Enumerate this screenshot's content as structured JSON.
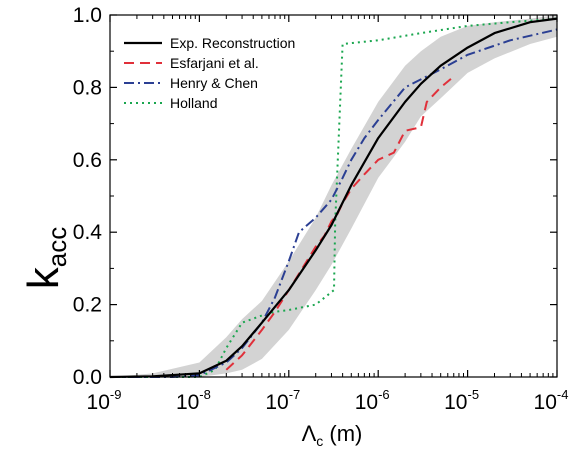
{
  "chart_data": {
    "type": "line",
    "xlabel": "Λc (m)",
    "xlabel_symbol": "Λ",
    "xlabel_sub": "c",
    "xlabel_unit": " (m)",
    "ylabel": "kacc",
    "ylabel_main": "k",
    "ylabel_sub": "acc",
    "xscale": "log",
    "xlim": [
      1e-09,
      0.0001
    ],
    "ylim": [
      0,
      1
    ],
    "x_tick_exponents": [
      "-9",
      "-8",
      "-7",
      "-6",
      "-5",
      "-4"
    ],
    "y_ticks": [
      "0.0",
      "0.2",
      "0.4",
      "0.6",
      "0.8",
      "1.0"
    ],
    "legend_position": "top-left",
    "band": {
      "x": [
        1e-09,
        3e-09,
        1e-08,
        2e-08,
        3e-08,
        5e-08,
        1e-07,
        2e-07,
        3e-07,
        5e-07,
        1e-06,
        2e-06,
        3e-06,
        5e-06,
        1e-05,
        2e-05,
        5e-05,
        0.0001
      ],
      "lower": [
        0,
        0,
        0,
        0.01,
        0.02,
        0.05,
        0.13,
        0.24,
        0.31,
        0.41,
        0.55,
        0.65,
        0.72,
        0.77,
        0.84,
        0.88,
        0.92,
        0.94
      ],
      "upper": [
        0,
        0.01,
        0.04,
        0.11,
        0.16,
        0.21,
        0.32,
        0.44,
        0.53,
        0.63,
        0.76,
        0.86,
        0.9,
        0.94,
        0.97,
        0.98,
        0.99,
        1.0
      ]
    },
    "series": [
      {
        "name": "Exp. Reconstruction",
        "color": "#000000",
        "dash": "solid",
        "x": [
          1e-09,
          3e-09,
          1e-08,
          2e-08,
          3e-08,
          5e-08,
          1e-07,
          2e-07,
          3e-07,
          5e-07,
          1e-06,
          2e-06,
          3e-06,
          5e-06,
          1e-05,
          2e-05,
          5e-05,
          0.0001
        ],
        "y": [
          0,
          0.002,
          0.01,
          0.045,
          0.085,
          0.15,
          0.24,
          0.35,
          0.42,
          0.53,
          0.66,
          0.76,
          0.81,
          0.86,
          0.91,
          0.95,
          0.98,
          0.99
        ]
      },
      {
        "name": "Esfarjani et al.",
        "color": "#e0303a",
        "dash": "dashed",
        "x": [
          2e-08,
          3e-08,
          5e-08,
          7e-08,
          1e-07,
          1.5e-07,
          2e-07,
          2.5e-07,
          3e-07,
          3.5e-07,
          4e-07,
          5e-07,
          7e-07,
          1e-06,
          1.5e-06,
          2e-06,
          3e-06,
          3.5e-06,
          5e-06,
          7e-06
        ],
        "y": [
          0.02,
          0.06,
          0.13,
          0.18,
          0.24,
          0.31,
          0.36,
          0.39,
          0.43,
          0.45,
          0.48,
          0.52,
          0.56,
          0.6,
          0.62,
          0.68,
          0.69,
          0.76,
          0.8,
          0.83
        ]
      },
      {
        "name": "Henry & Chen",
        "color": "#2b3f93",
        "dash": "dashdot",
        "x": [
          1e-09,
          5e-09,
          1e-08,
          2e-08,
          3e-08,
          5e-08,
          7e-08,
          1e-07,
          1.3e-07,
          2e-07,
          3e-07,
          4e-07,
          5e-07,
          7e-07,
          1e-06,
          2e-06,
          5e-06,
          1e-05,
          3e-05,
          0.0001
        ],
        "y": [
          0,
          0,
          0.005,
          0.04,
          0.08,
          0.15,
          0.22,
          0.32,
          0.4,
          0.44,
          0.49,
          0.55,
          0.6,
          0.66,
          0.71,
          0.8,
          0.85,
          0.89,
          0.93,
          0.96
        ]
      },
      {
        "name": "Holland",
        "color": "#1aa64f",
        "dash": "dotted",
        "x": [
          1e-09,
          1e-08,
          1.5e-08,
          2e-08,
          3e-08,
          5e-08,
          7e-08,
          1e-07,
          2e-07,
          3.2e-07,
          3.3e-07,
          3.4e-07,
          4e-07,
          1e-06,
          3e-06,
          1e-05,
          3e-05,
          0.0001
        ],
        "y": [
          0,
          0,
          0.02,
          0.08,
          0.15,
          0.17,
          0.18,
          0.185,
          0.2,
          0.24,
          0.43,
          0.5,
          0.92,
          0.93,
          0.95,
          0.97,
          0.98,
          0.99
        ]
      }
    ]
  }
}
